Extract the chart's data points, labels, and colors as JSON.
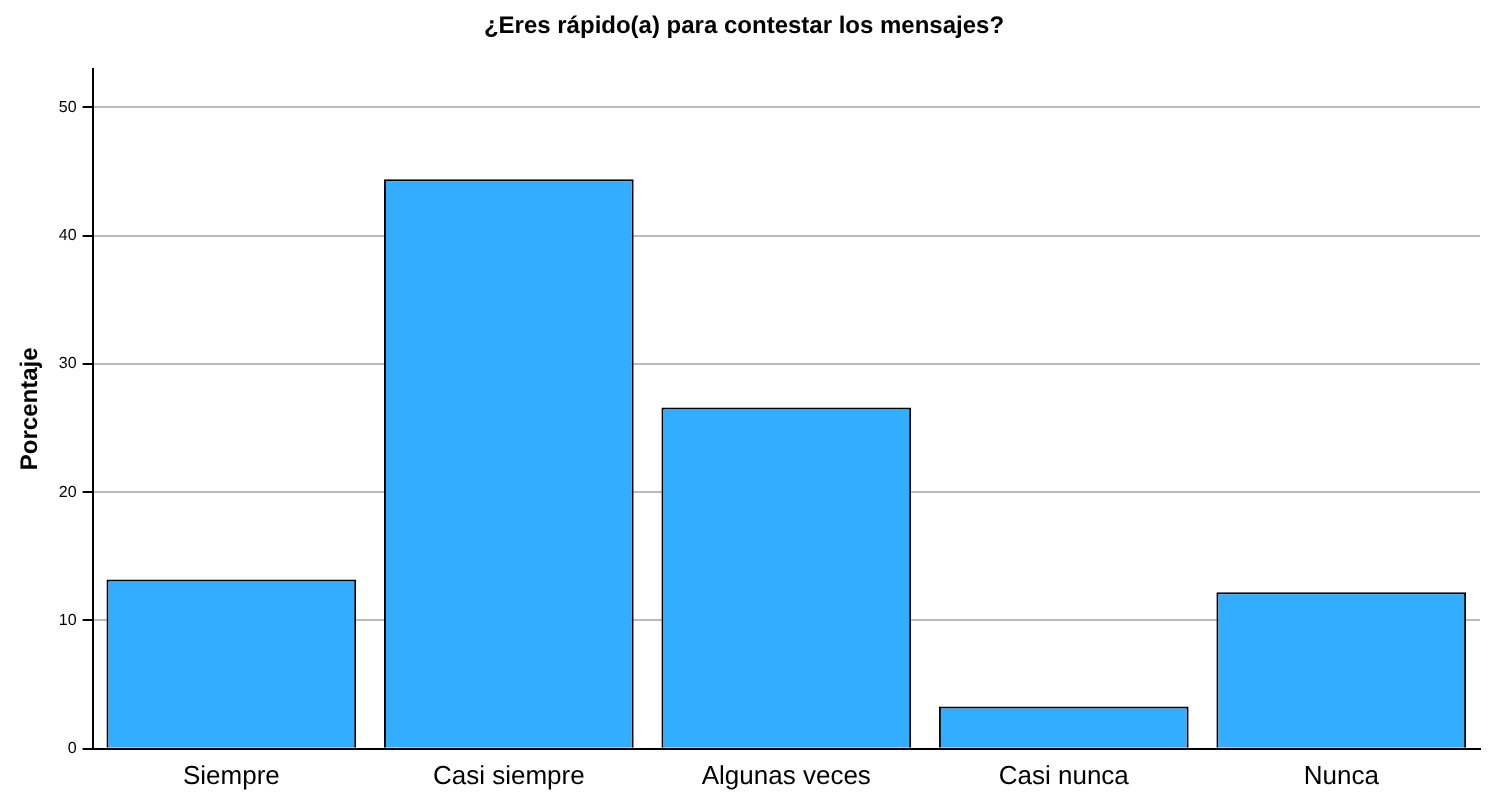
{
  "chart_data": {
    "type": "bar",
    "title": "¿Eres rápido(a) para contestar los mensajes?",
    "ylabel": "Porcentaje",
    "categories": [
      "Siempre",
      "Casi siempre",
      "Algunas veces",
      "Casi nunca",
      "Nunca"
    ],
    "values": [
      13.2,
      44.4,
      26.6,
      3.3,
      12.2
    ],
    "color": "#33adff",
    "ylim": [
      0,
      53
    ],
    "yticks": [
      0,
      10,
      20,
      30,
      40,
      50
    ],
    "grid": "y",
    "legend": false
  }
}
